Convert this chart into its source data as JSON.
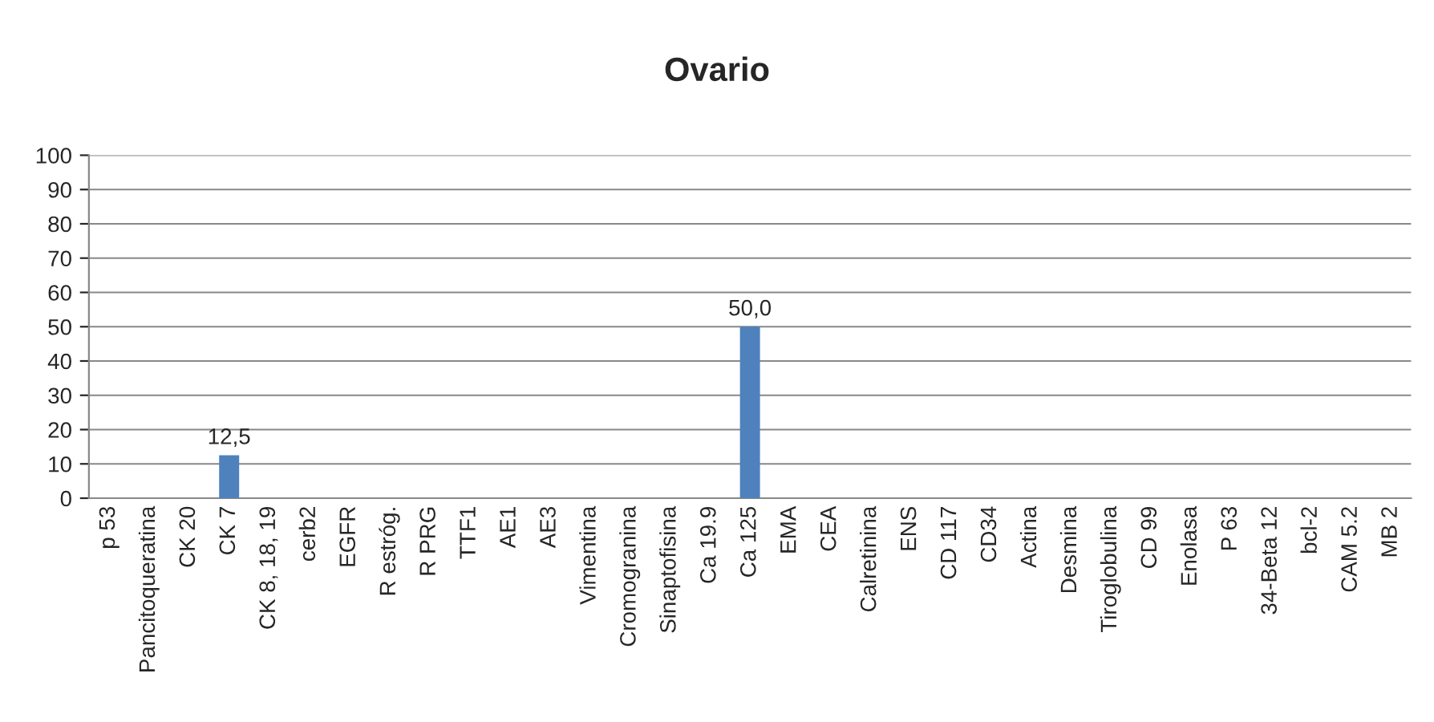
{
  "chart_data": {
    "type": "bar",
    "title": "Ovario",
    "categories": [
      "p 53",
      "Pancitoqueratina",
      "CK 20",
      "CK 7",
      "CK 8, 18, 19",
      "cerb2",
      "EGFR",
      "R estróg.",
      "R PRG",
      "TTF1",
      "AE1",
      "AE3",
      "Vimentina",
      "Cromogranina",
      "Sinaptofisina",
      "Ca 19.9",
      "Ca 125",
      "EMA",
      "CEA",
      "Calretinina",
      "ENS",
      "CD 117",
      "CD34",
      "Actina",
      "Desmina",
      "Tiroglobulina",
      "CD 99",
      "Enolasa",
      "P 63",
      "34-Beta 12",
      "bcl-2",
      "CAM 5.2",
      "MB 2"
    ],
    "values": [
      0,
      0,
      0,
      12.5,
      0,
      0,
      0,
      0,
      0,
      0,
      0,
      0,
      0,
      0,
      0,
      0,
      50,
      0,
      0,
      0,
      0,
      0,
      0,
      0,
      0,
      0,
      0,
      0,
      0,
      0,
      0,
      0,
      0
    ],
    "value_labels": [
      null,
      null,
      null,
      "12,5",
      null,
      null,
      null,
      null,
      null,
      null,
      null,
      null,
      null,
      null,
      null,
      null,
      "50,0",
      null,
      null,
      null,
      null,
      null,
      null,
      null,
      null,
      null,
      null,
      null,
      null,
      null,
      null,
      null,
      null
    ],
    "color": "#4f81bd",
    "ylim": [
      0,
      100
    ],
    "yticks": [
      0,
      10,
      20,
      30,
      40,
      50,
      60,
      70,
      80,
      90,
      100
    ],
    "grid": "y",
    "legend": false
  }
}
